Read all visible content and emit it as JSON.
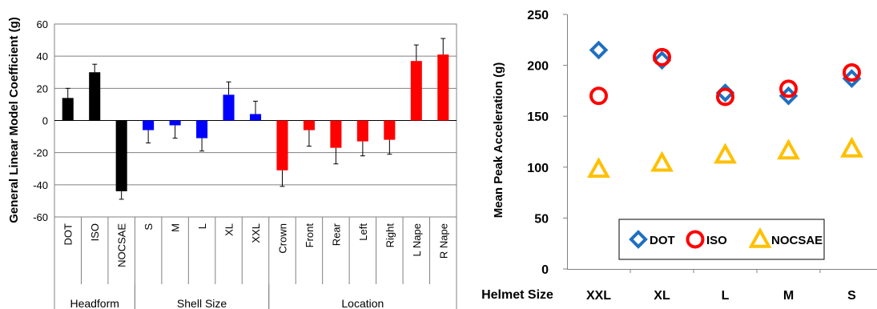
{
  "chart_data": [
    {
      "type": "bar",
      "ylabel": "General Linear Model Coefficient (g)",
      "ylim": [
        -60,
        60
      ],
      "yticks": [
        -60,
        -40,
        -20,
        0,
        20,
        40,
        60
      ],
      "grid": true,
      "categories": [
        "DOT",
        "ISO",
        "NOCSAE",
        "S",
        "M",
        "L",
        "XL",
        "XXL",
        "Crown",
        "Front",
        "Rear",
        "Left",
        "Right",
        "L Nape",
        "R Nape"
      ],
      "values": [
        14,
        30,
        -44,
        -6,
        -3,
        -11,
        16,
        4,
        -31,
        -6,
        -17,
        -13,
        -12,
        37,
        41
      ],
      "errors": [
        6,
        5,
        5,
        8,
        8,
        8,
        8,
        8,
        10,
        10,
        10,
        9,
        9,
        10,
        10
      ],
      "colors": [
        "#000000",
        "#000000",
        "#000000",
        "#0000ff",
        "#0000ff",
        "#0000ff",
        "#0000ff",
        "#0000ff",
        "#ff0000",
        "#ff0000",
        "#ff0000",
        "#ff0000",
        "#ff0000",
        "#ff0000",
        "#ff0000"
      ],
      "groups": [
        {
          "label": "Headform",
          "start": 0,
          "end": 2
        },
        {
          "label": "Shell Size",
          "start": 3,
          "end": 7
        },
        {
          "label": "Location",
          "start": 8,
          "end": 14
        }
      ]
    },
    {
      "type": "scatter",
      "ylabel": "Mean Peak Acceleration (g)",
      "xlabel": "Helmet Size",
      "ylim": [
        0,
        250
      ],
      "yticks": [
        0,
        50,
        100,
        150,
        200,
        250
      ],
      "categories": [
        "XXL",
        "XL",
        "L",
        "M",
        "S"
      ],
      "series": [
        {
          "name": "DOT",
          "marker": "diamond",
          "color": "#1f6fc1",
          "values": [
            215,
            205,
            173,
            170,
            187
          ]
        },
        {
          "name": "ISO",
          "marker": "circle",
          "color": "#ff0000",
          "values": [
            170,
            208,
            169,
            177,
            193
          ]
        },
        {
          "name": "NOCSAE",
          "marker": "triangle",
          "color": "#ffc000",
          "values": [
            98,
            104,
            112,
            116,
            118
          ]
        }
      ],
      "legend": "bottom-right"
    }
  ]
}
